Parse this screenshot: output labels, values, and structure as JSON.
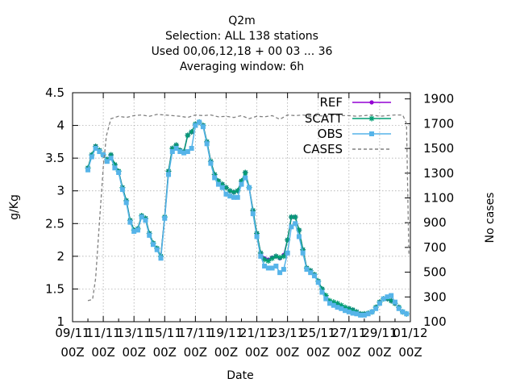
{
  "chart_data": {
    "type": "line",
    "title_lines": [
      "Q2m",
      "Selection: ALL    138 stations",
      "Used  00,06,12,18 + 00 03 ... 36",
      "Averaging window:  6h"
    ],
    "xlabel": "Date",
    "ylabel": "g/Kg",
    "y2label": "No cases",
    "xlim": [
      0,
      22
    ],
    "ylim": [
      1,
      4.5
    ],
    "y2lim": [
      100,
      1950
    ],
    "grid": true,
    "legend_position": "top-right",
    "x_ticks": [
      {
        "x": 0,
        "l1": "09/11",
        "l2": "00Z"
      },
      {
        "x": 2,
        "l1": "11/11",
        "l2": "00Z"
      },
      {
        "x": 4,
        "l1": "13/11",
        "l2": "00Z"
      },
      {
        "x": 6,
        "l1": "15/11",
        "l2": "00Z"
      },
      {
        "x": 8,
        "l1": "17/11",
        "l2": "00Z"
      },
      {
        "x": 10,
        "l1": "19/11",
        "l2": "00Z"
      },
      {
        "x": 12,
        "l1": "21/11",
        "l2": "00Z"
      },
      {
        "x": 14,
        "l1": "23/11",
        "l2": "00Z"
      },
      {
        "x": 16,
        "l1": "25/11",
        "l2": "00Z"
      },
      {
        "x": 18,
        "l1": "27/11",
        "l2": "00Z"
      },
      {
        "x": 20,
        "l1": "29/11",
        "l2": "00Z"
      },
      {
        "x": 22,
        "l1": "01/12",
        "l2": "00Z"
      }
    ],
    "y_ticks": [
      "1",
      "1.5",
      "2",
      "2.5",
      "3",
      "3.5",
      "4",
      "4.5"
    ],
    "y2_ticks": [
      "100",
      "300",
      "500",
      "700",
      "900",
      "1100",
      "1300",
      "1500",
      "1700",
      "1900"
    ],
    "x": [
      1.0,
      1.25,
      1.5,
      1.75,
      2.0,
      2.25,
      2.5,
      2.75,
      3.0,
      3.25,
      3.5,
      3.75,
      4.0,
      4.25,
      4.5,
      4.75,
      5.0,
      5.25,
      5.5,
      5.75,
      6.0,
      6.25,
      6.5,
      6.75,
      7.0,
      7.25,
      7.5,
      7.75,
      8.0,
      8.25,
      8.5,
      8.75,
      9.0,
      9.25,
      9.5,
      9.75,
      10.0,
      10.25,
      10.5,
      10.75,
      11.0,
      11.25,
      11.5,
      11.75,
      12.0,
      12.25,
      12.5,
      12.75,
      13.0,
      13.25,
      13.5,
      13.75,
      14.0,
      14.25,
      14.5,
      14.75,
      15.0,
      15.25,
      15.5,
      15.75,
      16.0,
      16.25,
      16.5,
      16.75,
      17.0,
      17.25,
      17.5,
      17.75,
      18.0,
      18.25,
      18.5,
      18.75,
      19.0,
      19.25,
      19.5,
      19.75,
      20.0,
      20.25,
      20.5,
      20.75,
      21.0,
      21.25,
      21.5,
      21.75
    ],
    "series": [
      {
        "name": "REF",
        "color": "#9400d3",
        "marker": "point",
        "values": [
          3.35,
          3.55,
          3.68,
          3.62,
          3.55,
          3.48,
          3.55,
          3.4,
          3.3,
          3.05,
          2.85,
          2.55,
          2.4,
          2.42,
          2.62,
          2.58,
          2.35,
          2.2,
          2.12,
          2.0,
          2.6,
          3.3,
          3.65,
          3.7,
          3.62,
          3.6,
          3.85,
          3.9,
          4.02,
          4.05,
          4.0,
          3.75,
          3.45,
          3.25,
          3.15,
          3.1,
          3.05,
          3.0,
          2.98,
          3.0,
          3.15,
          3.28,
          3.05,
          2.7,
          2.35,
          2.05,
          1.97,
          1.95,
          1.98,
          2.0,
          1.97,
          2.02,
          2.25,
          2.6,
          2.6,
          2.4,
          2.1,
          1.82,
          1.78,
          1.72,
          1.62,
          1.5,
          1.38,
          1.3,
          1.28,
          1.27,
          1.22,
          1.2,
          1.2,
          1.18,
          1.15,
          1.12,
          1.12,
          1.13,
          1.15,
          1.22,
          1.3,
          1.35,
          1.35,
          1.32,
          1.28,
          1.22,
          1.15,
          1.12
        ]
      },
      {
        "name": "SCATT",
        "color": "#009e73",
        "marker": "star",
        "values": [
          3.35,
          3.55,
          3.68,
          3.62,
          3.55,
          3.48,
          3.55,
          3.4,
          3.3,
          3.05,
          2.85,
          2.55,
          2.4,
          2.42,
          2.62,
          2.58,
          2.35,
          2.2,
          2.12,
          2.0,
          2.6,
          3.3,
          3.65,
          3.7,
          3.62,
          3.6,
          3.85,
          3.9,
          4.02,
          4.05,
          4.0,
          3.75,
          3.45,
          3.25,
          3.15,
          3.1,
          3.05,
          3.0,
          2.98,
          3.0,
          3.15,
          3.28,
          3.05,
          2.7,
          2.35,
          2.05,
          1.95,
          1.93,
          1.97,
          2.0,
          1.98,
          2.0,
          2.25,
          2.6,
          2.6,
          2.4,
          2.1,
          1.82,
          1.78,
          1.72,
          1.62,
          1.5,
          1.4,
          1.32,
          1.3,
          1.28,
          1.25,
          1.22,
          1.2,
          1.18,
          1.15,
          1.12,
          1.12,
          1.13,
          1.15,
          1.22,
          1.3,
          1.35,
          1.35,
          1.32,
          1.28,
          1.22,
          1.15,
          1.12
        ]
      },
      {
        "name": "OBS",
        "color": "#56b4e9",
        "marker": "filled-box",
        "values": [
          3.32,
          3.52,
          3.65,
          3.6,
          3.55,
          3.45,
          3.5,
          3.35,
          3.28,
          3.02,
          2.82,
          2.52,
          2.38,
          2.4,
          2.6,
          2.55,
          2.32,
          2.18,
          2.1,
          1.97,
          2.58,
          3.25,
          3.6,
          3.65,
          3.6,
          3.58,
          3.6,
          3.65,
          4.0,
          4.05,
          3.98,
          3.72,
          3.42,
          3.2,
          3.1,
          3.05,
          2.95,
          2.92,
          2.9,
          2.9,
          3.1,
          3.2,
          3.05,
          2.65,
          2.3,
          2.0,
          1.85,
          1.82,
          1.82,
          1.85,
          1.75,
          1.8,
          2.05,
          2.45,
          2.5,
          2.3,
          2.05,
          1.8,
          1.75,
          1.7,
          1.6,
          1.45,
          1.35,
          1.28,
          1.25,
          1.22,
          1.2,
          1.17,
          1.15,
          1.13,
          1.12,
          1.1,
          1.1,
          1.12,
          1.15,
          1.2,
          1.28,
          1.35,
          1.38,
          1.4,
          1.3,
          1.2,
          1.15,
          1.12
        ]
      },
      {
        "name": "CASES",
        "color": "#808080",
        "marker": "dashed",
        "axis": "y2",
        "x": [
          1.0,
          1.3,
          1.5,
          1.75,
          2.0,
          2.2,
          2.5,
          3.0,
          3.5,
          4.0,
          4.5,
          5.0,
          5.5,
          6.0,
          6.5,
          7.0,
          7.5,
          8.0,
          8.5,
          9.0,
          9.5,
          10.0,
          10.5,
          11.0,
          11.5,
          12.0,
          12.5,
          13.0,
          13.5,
          14.0,
          14.5,
          15.0,
          15.5,
          16.0,
          16.5,
          17.0,
          17.5,
          18.0,
          18.5,
          19.0,
          19.5,
          20.0,
          20.5,
          21.0,
          21.5,
          21.75,
          21.9
        ],
        "values": [
          270,
          280,
          450,
          900,
          1350,
          1600,
          1740,
          1760,
          1750,
          1765,
          1770,
          1760,
          1775,
          1770,
          1765,
          1760,
          1750,
          1770,
          1765,
          1770,
          1755,
          1760,
          1750,
          1765,
          1740,
          1760,
          1755,
          1765,
          1735,
          1770,
          1765,
          1770,
          1760,
          1765,
          1760,
          1770,
          1765,
          1765,
          1760,
          1765,
          1770,
          1760,
          1765,
          1770,
          1770,
          1700,
          650
        ]
      }
    ]
  }
}
